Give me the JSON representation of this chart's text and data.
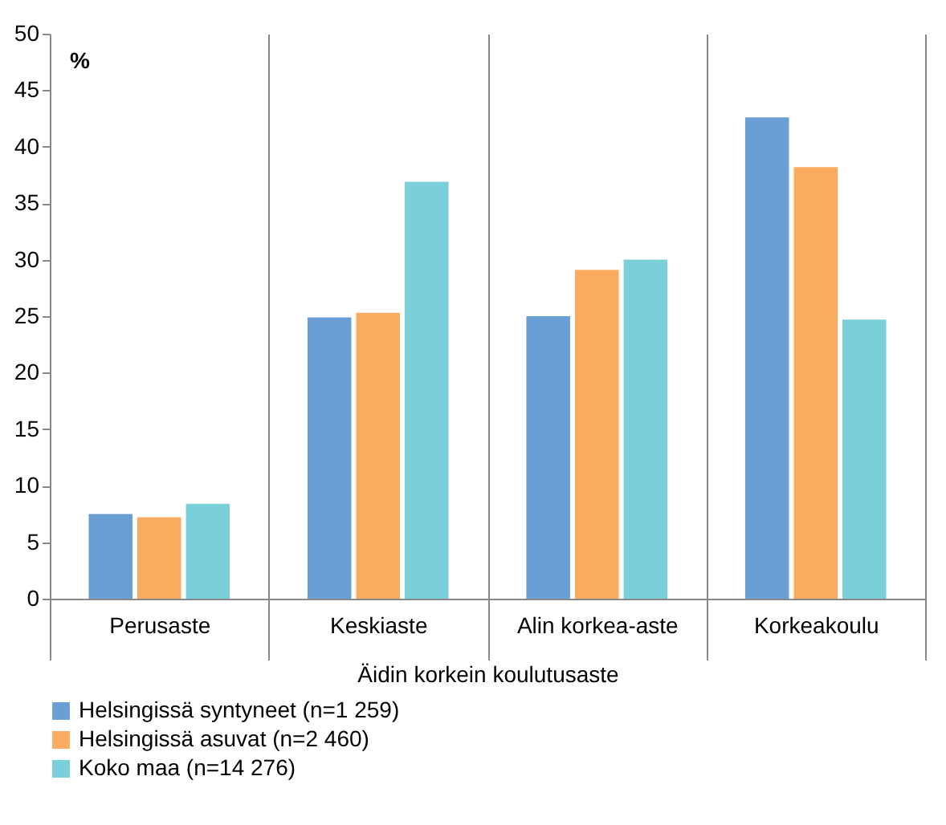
{
  "chart_data": {
    "type": "bar",
    "ylabel": "%",
    "xlabel": "Äidin korkein koulutusaste",
    "categories": [
      "Perusaste",
      "Keskiaste",
      "Alin korkea-aste",
      "Korkeakoulu"
    ],
    "series": [
      {
        "name": "Helsingissä syntyneet  (n=1 259)",
        "color": "#6a9fd6",
        "values": [
          7.5,
          24.9,
          25.0,
          42.6
        ]
      },
      {
        "name": "Helsingissä asuvat (n=2 460)",
        "color": "#fbab5f",
        "values": [
          7.2,
          25.3,
          29.1,
          38.2
        ]
      },
      {
        "name": "Koko maa (n=14 276)",
        "color": "#7bcfda",
        "values": [
          8.4,
          36.9,
          30.0,
          24.7
        ]
      }
    ],
    "ylim": [
      0,
      50
    ],
    "yticks": [
      0,
      5,
      10,
      15,
      20,
      25,
      30,
      35,
      40,
      45,
      50
    ],
    "grid": "x",
    "legend": "bottom"
  }
}
